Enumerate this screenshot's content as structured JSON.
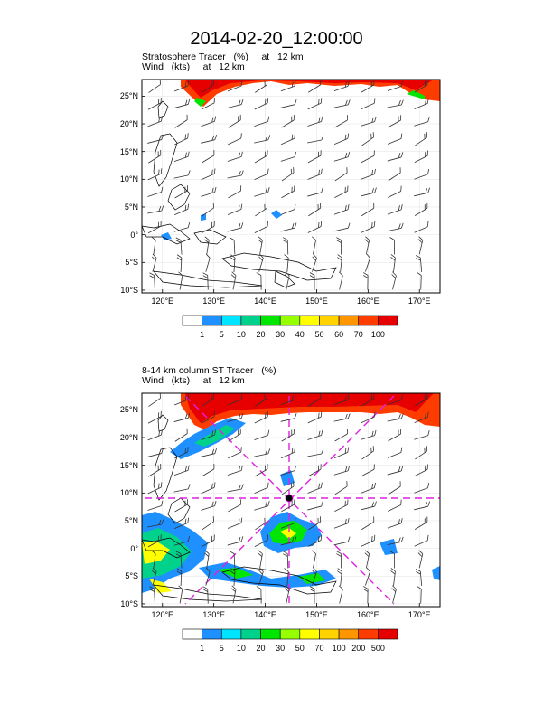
{
  "title": "2014-02-20_12:00:00",
  "panels": [
    {
      "subtitle_line1": "Stratosphere Tracer   (%)     at   12 km",
      "subtitle_line2": "Wind   (kts)     at   12 km",
      "lat_ticks": [
        "25°N",
        "20°N",
        "15°N",
        "10°N",
        "5°N",
        "0°",
        "5°S",
        "10°S"
      ],
      "lon_ticks": [
        "120°E",
        "130°E",
        "140°E",
        "150°E",
        "160°E",
        "170°E"
      ],
      "colorbar_labels": [
        "1",
        "5",
        "10",
        "20",
        "30",
        "40",
        "50",
        "60",
        "70",
        "100"
      ],
      "colorbar_colors": [
        "#ffffff",
        "#1e90ff",
        "#00e5ff",
        "#00d28c",
        "#00e600",
        "#96ff00",
        "#ffff00",
        "#ffd200",
        "#ff9600",
        "#ff3c00",
        "#e60000"
      ]
    },
    {
      "subtitle_line1": "8-14 km column ST Tracer   (%)",
      "subtitle_line2": "Wind   (kts)     at   12 km",
      "lat_ticks": [
        "25°N",
        "20°N",
        "15°N",
        "10°N",
        "5°N",
        "0°",
        "5°S",
        "10°S"
      ],
      "lon_ticks": [
        "120°E",
        "130°E",
        "140°E",
        "150°E",
        "160°E",
        "170°E"
      ],
      "colorbar_labels": [
        "1",
        "5",
        "10",
        "20",
        "30",
        "50",
        "70",
        "100",
        "200",
        "500"
      ],
      "colorbar_colors": [
        "#ffffff",
        "#1e90ff",
        "#00e5ff",
        "#00d28c",
        "#00e600",
        "#96ff00",
        "#ffff00",
        "#ffd200",
        "#ff9600",
        "#ff3c00",
        "#e60000"
      ]
    }
  ]
}
